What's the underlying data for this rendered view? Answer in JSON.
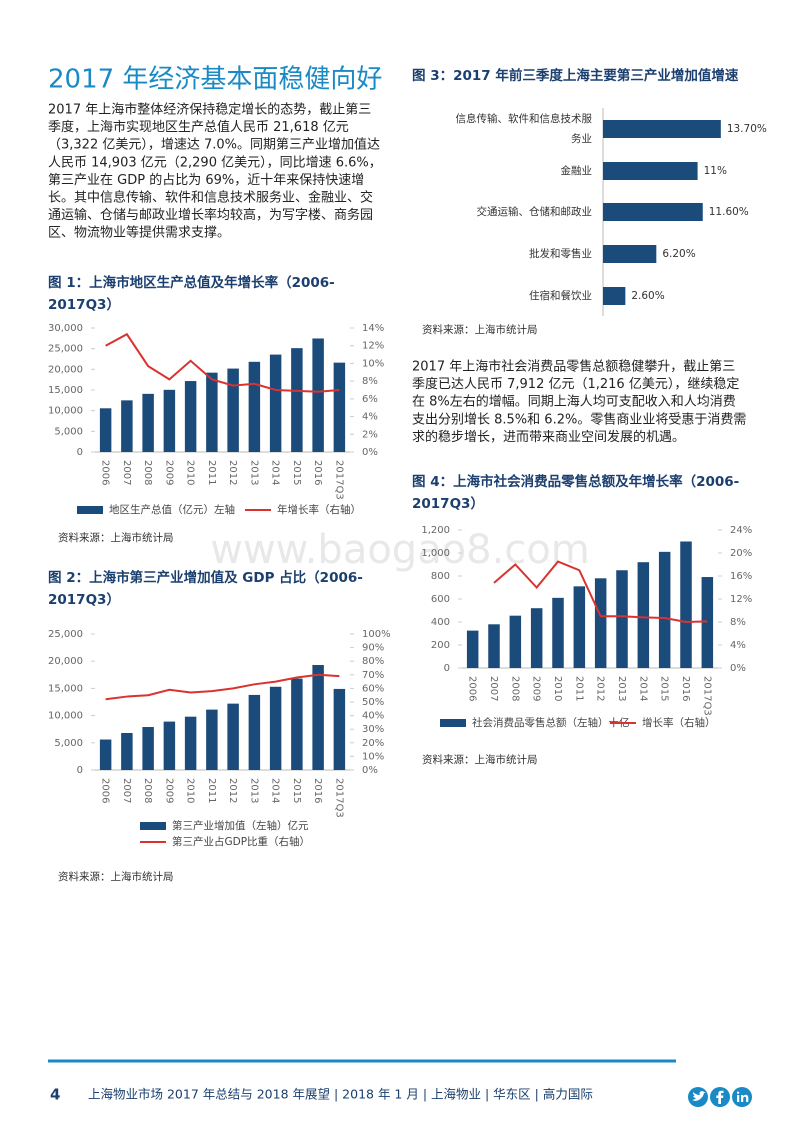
{
  "heading": "2017 年经济基本面稳健向好",
  "paragraphs": [
    [
      "2017 年上海市整体经济保持稳定增长的态势，截止第三",
      "季度，上海市实现地区生产总值人民币 21,618 亿元",
      "（3,322 亿美元），增速达 7.0%。同期第三产业增加值达",
      "人民币 14,903 亿元（2,290 亿美元），同比增速 6.6%，",
      "第三产业在 GDP 的占比为 69%，近十年来保持快速增",
      "长。其中信息传输、软件和信息技术服务业、金融业、交",
      "通运输、仓储与邮政业增长率均较高，为写字楼、商务园",
      "区、物流物业等提供需求支撑。"
    ],
    [
      "2017 年上海市社会消费品零售总额稳健攀升，截止第三",
      "季度已达人民币 7,912 亿元（1,216 亿美元），继续稳定",
      "在 8%左右的增幅。同期上海人均可支配收入和人均消费",
      "支出分别增长 8.5%和 6.2%。零售商业业将受惠于消费需",
      "求的稳步增长，进而带来商业空间发展的机遇。"
    ]
  ],
  "watermark": "www.baogao8.com",
  "footer": {
    "page": "4",
    "text": "上海物业市场 2017 年总结与 2018 年展望 | 2018 年 1 月 | 上海物业 | 华东区 | 高力国际"
  },
  "chart_data": [
    {
      "type": "bar",
      "title": [
        "图 1：上海市地区生产总值及年增长率（2006-",
        "2017Q3）"
      ],
      "source": "资料来源：上海市统计局",
      "categories": [
        "2006",
        "2007",
        "2008",
        "2009",
        "2010",
        "2011",
        "2012",
        "2013",
        "2014",
        "2015",
        "2016",
        "2017Q3"
      ],
      "series": [
        {
          "name": "地区生产总值（亿元）左轴",
          "color": "#1b4b7a",
          "type": "bar",
          "values": [
            10572,
            12494,
            14070,
            15046,
            17166,
            19196,
            20182,
            21818,
            23568,
            25123,
            27466,
            21618
          ]
        },
        {
          "name": "年增长率（右轴）",
          "color": "#d9322f",
          "type": "line",
          "axis": "y2",
          "values": [
            12,
            13.3,
            9.7,
            8.2,
            10.3,
            8.2,
            7.5,
            7.7,
            7,
            6.9,
            6.8,
            7
          ]
        }
      ],
      "ylim": [
        0,
        30000
      ],
      "yticks": [
        0,
        {
          "value": 5000,
          "label": "5,000"
        },
        {
          "value": 10000,
          "label": "10,000"
        },
        {
          "value": 15000,
          "label": "15,000"
        },
        {
          "value": 20000,
          "label": "20,000"
        },
        {
          "value": 25000,
          "label": "25,000"
        },
        {
          "value": 30000,
          "label": "30,000"
        }
      ],
      "y2lim": [
        0,
        14
      ],
      "y2ticks": [
        {
          "value": 0,
          "label": "0%"
        },
        {
          "value": 2,
          "label": "2%"
        },
        {
          "value": 4,
          "label": "4%"
        },
        {
          "value": 6,
          "label": "6%"
        },
        {
          "value": 8,
          "label": "8%"
        },
        {
          "value": 10,
          "label": "10%"
        },
        {
          "value": 12,
          "label": "12%"
        },
        {
          "value": 14,
          "label": "14%"
        }
      ],
      "legend": "bottom"
    },
    {
      "type": "bar",
      "title": [
        "图 2：上海市第三产业增加值及 GDP 占比（2006-",
        "2017Q3）"
      ],
      "source": "资料来源：上海市统计局",
      "categories": [
        "2006",
        "2007",
        "2008",
        "2009",
        "2010",
        "2011",
        "2012",
        "2013",
        "2014",
        "2015",
        "2016",
        "2017Q3"
      ],
      "series": [
        {
          "name": "第三产业增加值（左轴）亿元",
          "color": "#1b4b7a",
          "type": "bar",
          "values": [
            5600,
            6800,
            7900,
            8900,
            9800,
            11100,
            12200,
            13800,
            15300,
            16800,
            19300,
            14903
          ]
        },
        {
          "name": "第三产业占GDP比重（右轴）",
          "color": "#d9322f",
          "type": "line",
          "axis": "y2",
          "values": [
            52,
            54,
            55,
            59,
            57,
            58,
            60,
            63,
            65,
            68,
            70,
            69
          ]
        }
      ],
      "ylim": [
        0,
        25000
      ],
      "yticks": [
        0,
        {
          "value": 5000,
          "label": "5,000"
        },
        {
          "value": 10000,
          "label": "10,000"
        },
        {
          "value": 15000,
          "label": "15,000"
        },
        {
          "value": 20000,
          "label": "20,000"
        },
        {
          "value": 25000,
          "label": "25,000"
        }
      ],
      "y2lim": [
        0,
        100
      ],
      "y2ticks": [
        {
          "value": 0,
          "label": "0%"
        },
        {
          "value": 10,
          "label": "10%"
        },
        {
          "value": 20,
          "label": "20%"
        },
        {
          "value": 30,
          "label": "30%"
        },
        {
          "value": 40,
          "label": "40%"
        },
        {
          "value": 50,
          "label": "50%"
        },
        {
          "value": 60,
          "label": "60%"
        },
        {
          "value": 70,
          "label": "70%"
        },
        {
          "value": 80,
          "label": "80%"
        },
        {
          "value": 90,
          "label": "90%"
        },
        {
          "value": 100,
          "label": "100%"
        }
      ],
      "legend": "bottom"
    },
    {
      "type": "hbar",
      "title": [
        "图 3：2017 年前三季度上海主要第三产业增加值增速"
      ],
      "source": "资料来源：上海市统计局",
      "categories": [
        [
          "信息传输、软件和信息技术服",
          "务业"
        ],
        [
          "金融业"
        ],
        [
          "交通运输、仓储和邮政业"
        ],
        [
          "批发和零售业"
        ],
        [
          "住宿和餐饮业"
        ]
      ],
      "values": [
        13.7,
        11,
        11.6,
        6.2,
        2.6
      ],
      "value_labels": [
        "13.70%",
        "11%",
        "11.60%",
        "6.20%",
        "2.60%"
      ],
      "color": "#1b4b7a"
    },
    {
      "type": "bar",
      "title": [
        "图 4：上海市社会消费品零售总额及年增长率（2006-",
        "2017Q3）"
      ],
      "source": "资料来源：上海市统计局",
      "categories": [
        "2006",
        "2007",
        "2008",
        "2009",
        "2010",
        "2011",
        "2012",
        "2013",
        "2014",
        "2015",
        "2016",
        "2017Q3"
      ],
      "series": [
        {
          "name": "社会消费品零售总额（左轴）十亿",
          "color": "#1b4b7a",
          "type": "bar",
          "values": [
            325,
            380,
            455,
            520,
            610,
            710,
            780,
            850,
            920,
            1010,
            1100,
            791
          ]
        },
        {
          "name": "增长率（右轴）",
          "color": "#d9322f",
          "type": "line",
          "axis": "y2",
          "values": [
            null,
            14.8,
            18,
            14,
            18.5,
            17,
            9,
            9,
            8.8,
            8.7,
            8,
            8.1
          ]
        }
      ],
      "ylim": [
        0,
        1200
      ],
      "yticks": [
        0,
        200,
        400,
        600,
        800,
        {
          "value": 1000,
          "label": "1,000"
        },
        {
          "value": 1200,
          "label": "1,200"
        }
      ],
      "y2lim": [
        0,
        24
      ],
      "y2ticks": [
        {
          "value": 0,
          "label": "0%"
        },
        {
          "value": 4,
          "label": "4%"
        },
        {
          "value": 8,
          "label": "8%"
        },
        {
          "value": 12,
          "label": "12%"
        },
        {
          "value": 16,
          "label": "16%"
        },
        {
          "value": 20,
          "label": "20%"
        },
        {
          "value": 24,
          "label": "24%"
        }
      ],
      "legend": "bottom"
    }
  ]
}
